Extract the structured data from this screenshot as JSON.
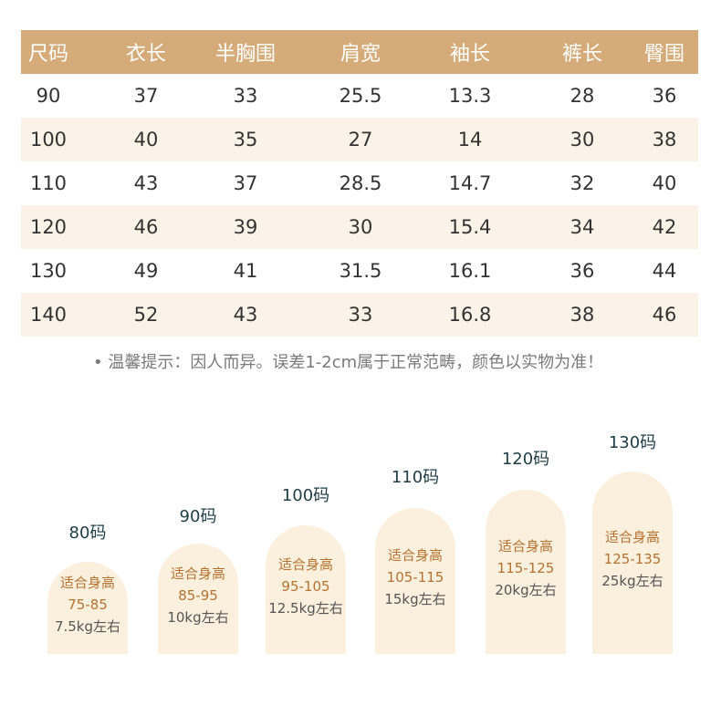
{
  "table": {
    "headers": [
      "尺码",
      "衣长",
      "半胸围",
      "肩宽",
      "袖长",
      "裤长",
      "臀围"
    ],
    "rows": [
      [
        "90",
        "37",
        "33",
        "25.5",
        "13.3",
        "28",
        "36"
      ],
      [
        "100",
        "40",
        "35",
        "27",
        "14",
        "30",
        "38"
      ],
      [
        "110",
        "43",
        "37",
        "28.5",
        "14.7",
        "32",
        "40"
      ],
      [
        "120",
        "46",
        "39",
        "30",
        "15.4",
        "34",
        "42"
      ],
      [
        "130",
        "49",
        "41",
        "31.5",
        "16.1",
        "36",
        "44"
      ],
      [
        "140",
        "52",
        "43",
        "33",
        "16.8",
        "38",
        "46"
      ]
    ]
  },
  "note": "• 温馨提示：因人而异。误差1-2cm属于正常范畴，颜色以实物为准！",
  "sizes": [
    {
      "title": "80码",
      "fit": "适合身高",
      "height": "75-85",
      "weight": "7.5kg左右"
    },
    {
      "title": "90码",
      "fit": "适合身高",
      "height": "85-95",
      "weight": "10kg左右"
    },
    {
      "title": "100码",
      "fit": "适合身高",
      "height": "95-105",
      "weight": "12.5kg左右"
    },
    {
      "title": "110码",
      "fit": "适合身高",
      "height": "105-115",
      "weight": "15kg左右"
    },
    {
      "title": "120码",
      "fit": "适合身高",
      "height": "115-125",
      "weight": "20kg左右"
    },
    {
      "title": "130码",
      "fit": "适合身高",
      "height": "125-135",
      "weight": "25kg左右"
    }
  ],
  "colors": {
    "header_bg": "#d5ab7a",
    "alt_row": "#fbf3e7",
    "arch_bg": "#fbf0de",
    "arch_text": "#b5722f"
  }
}
